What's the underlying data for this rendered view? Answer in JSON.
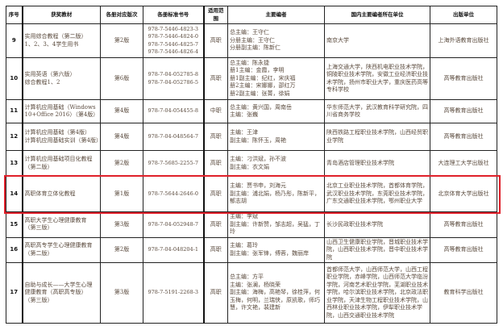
{
  "headers": [
    "序号",
    "获奖教材",
    "各册对应版次",
    "各册标准书号",
    "适用范围",
    "主要编者",
    "国内主要编者所在单位",
    "出版单位"
  ],
  "rows": [
    {
      "no": "9",
      "title": [
        "实用综合教程（第二版）",
        "1、2、3、4学生用书"
      ],
      "edition": "第2版",
      "isbn": [
        "978-7-5446-4823-3",
        "978-7-5446-4824-0",
        "978-7-5446-4825-7",
        "978-7-5446-4826-4"
      ],
      "scope": "高职",
      "editors": [
        "总主编：王守仁",
        "分册主编：王守仁",
        "分册副主编：陈新仁"
      ],
      "units": "南京大学",
      "publisher": "上海外语教育出版社"
    },
    {
      "no": "10",
      "title": [
        "实用英语（第六版）",
        "综合教程1、2"
      ],
      "edition": "第6版",
      "isbn": [
        "978-7-04-052785-8",
        "978-7-04-052786-5"
      ],
      "scope": "高职",
      "editors": [
        "总主编：陈永捷",
        "册1主编：金霞，李明",
        "册1副主编：纪红，宋庆福",
        "册2主编：宋娜娜，邵红万",
        "册2副主编：张菁，徐娟"
      ],
      "units": "上海交通大学，陕西机电职业技术学院，铜陵职业技术学院，安徽工业经济职业技术学院，扬州市职业大学，重庆医药高等专科学校",
      "publisher": "高等教育出版社"
    },
    {
      "no": "11",
      "title": [
        "计算机应用基础（Windows",
        "10+Office 2016）（第4版）"
      ],
      "edition": "第4版",
      "isbn": [
        "978-7-04-054455-8"
      ],
      "scope": "中职",
      "editors": [
        "总主编：黄兴国，周南岳",
        "主编：张巍"
      ],
      "units": "华东师范大学，武汉教育科学研究院，四川省商务学校",
      "publisher": "高等教育出版社"
    },
    {
      "no": "12",
      "title": [
        "计算机应用基础（第4版）",
        "计算机应用基础实训（第4版）"
      ],
      "edition": "第4版",
      "isbn": [
        "978-7-04-048564-7"
      ],
      "scope": "高职",
      "editors": [
        "主编：王津",
        "副主编：陈怀玉，周艳"
      ],
      "units": "陕西铁路工程职业技术学院，山西经贸职业学院",
      "publisher": "高等教育出版社"
    },
    {
      "no": "13",
      "title": [
        "计算机应用基础项目化教程",
        "（第二版）"
      ],
      "edition": "第2版",
      "isbn": [
        "978-7-5685-2255-7"
      ],
      "scope": "高职",
      "editors": [
        "主编：刁洪斌，孙不波",
        "副主编：衣文娟"
      ],
      "units": "青岛酒店管理职业技术学院",
      "publisher": "大连理工大学出版社"
    },
    {
      "no": "14",
      "title": [
        "高职体育立体化教程"
      ],
      "edition": "第1版",
      "isbn": [
        "978-7-5644-2646-0"
      ],
      "scope": "高职",
      "editors": [
        "主编：贾书申，刘海元",
        "副主编：浦北娟，杨乃彤，陈新平，郁志胡"
      ],
      "units": "北京工业职业技术学院，首都体育学院，武汉职业技术学院，东莞职业技术学院，广东交通职业技术学院，鄂州职业大学",
      "publisher": "北京体育大学出版社"
    },
    {
      "no": "15",
      "title": [
        "高职大学生心理健康教育",
        "（第三版）"
      ],
      "edition": "第3版",
      "isbn": [
        "978-7-04-052948-7"
      ],
      "scope": "高职",
      "editors": [
        "主编：李斌",
        "副主编：许新赞，邹志超，吴猛，丁玲"
      ],
      "units": "长沙民政职业技术学院",
      "publisher": "高等教育出版社"
    },
    {
      "no": "16",
      "title": [
        "高职高专学生心理健康教育",
        "（第二版）"
      ],
      "edition": "第2版",
      "isbn": [
        "978-7-04-048204-1"
      ],
      "scope": "高职",
      "editors": [
        "主编：葛玲",
        "副主编：张军锋，傅蓉，魏丽岸"
      ],
      "units": "山西卫生健康职业学院，晋城职业技术学院，山西职业技术学院，晋中职业技术学院",
      "publisher": "高等教育出版社"
    },
    {
      "no": "17",
      "title": [
        "自助与成长——大学生心理",
        "健康教育（高职高专版）",
        "（第三版）"
      ],
      "edition": "第3版",
      "isbn": [
        "978-7-5191-2268-3"
      ],
      "scope": "高职",
      "editors": [
        "总主编：方平",
        "主编：张澜，杨晓荣",
        "副主编：海梅，高艳琴，徐桂萍，何玉梅，何明，兰瑞侠，原凯歌，师巧慧，许文艳，裴建新"
      ],
      "units": "首都师范大学，山西师范大学，山西工程职业学院，赤峰学院，山西师范大学临汾学院，河南艺术职业学院，芜湖职业技术学院，哈尔滨职业技术学院，北京政法职业学院，天津生物工程职业技术学院，山西林业职业技术学院，伊犁职业技术学院，山西交通职业技术学院",
      "publisher": "教育科学出版社"
    }
  ],
  "highlight_color": "#e0202a"
}
